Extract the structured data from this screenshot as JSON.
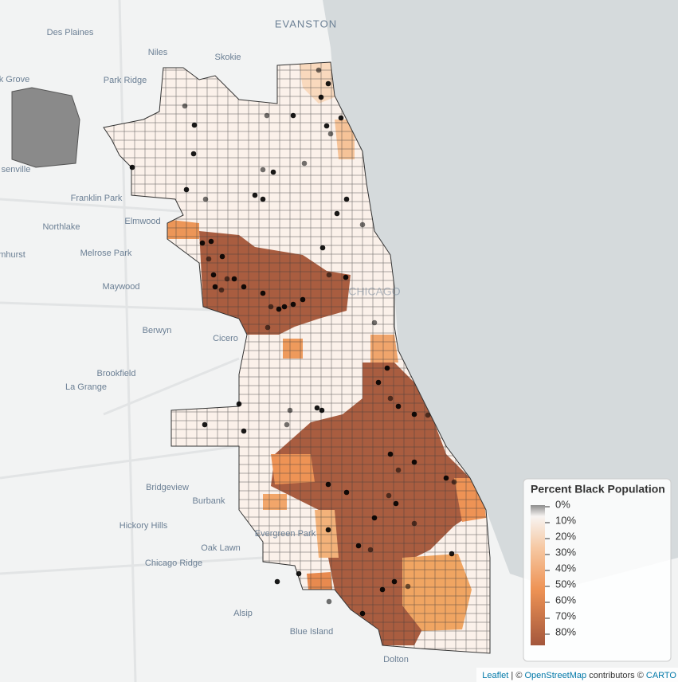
{
  "places": [
    {
      "text": "Des Plaines"
    },
    {
      "text": "Niles"
    },
    {
      "text": "Skokie"
    },
    {
      "text": "EVANSTON"
    },
    {
      "text": "Park Ridge"
    },
    {
      "text": "k Grove"
    },
    {
      "text": "senville"
    },
    {
      "text": "Franklin Park"
    },
    {
      "text": "Northlake"
    },
    {
      "text": "Elmwood"
    },
    {
      "text": "mhurst"
    },
    {
      "text": "Melrose Park"
    },
    {
      "text": "Maywood"
    },
    {
      "text": "Berwyn"
    },
    {
      "text": "Cicero"
    },
    {
      "text": "Brookfield"
    },
    {
      "text": "La Grange"
    },
    {
      "text": "Bridgeview"
    },
    {
      "text": "Burbank"
    },
    {
      "text": "Hickory Hills"
    },
    {
      "text": "Evergreen Park"
    },
    {
      "text": "Oak Lawn"
    },
    {
      "text": "Chicago Ridge"
    },
    {
      "text": "Alsip"
    },
    {
      "text": "Blue Island"
    },
    {
      "text": "Dolton"
    },
    {
      "text": "CHICAGO"
    }
  ],
  "legend": {
    "title": "Percent Black Population",
    "labels": [
      "0%",
      "10%",
      "20%",
      "30%",
      "40%",
      "50%",
      "60%",
      "70%",
      "80%"
    ]
  },
  "attribution": {
    "leaflet": "Leaflet",
    "separator": " | ",
    "osm_prefix": "© ",
    "osm": "OpenStreetMap",
    "middle": " contributors © ",
    "carto": "CARTO"
  }
}
